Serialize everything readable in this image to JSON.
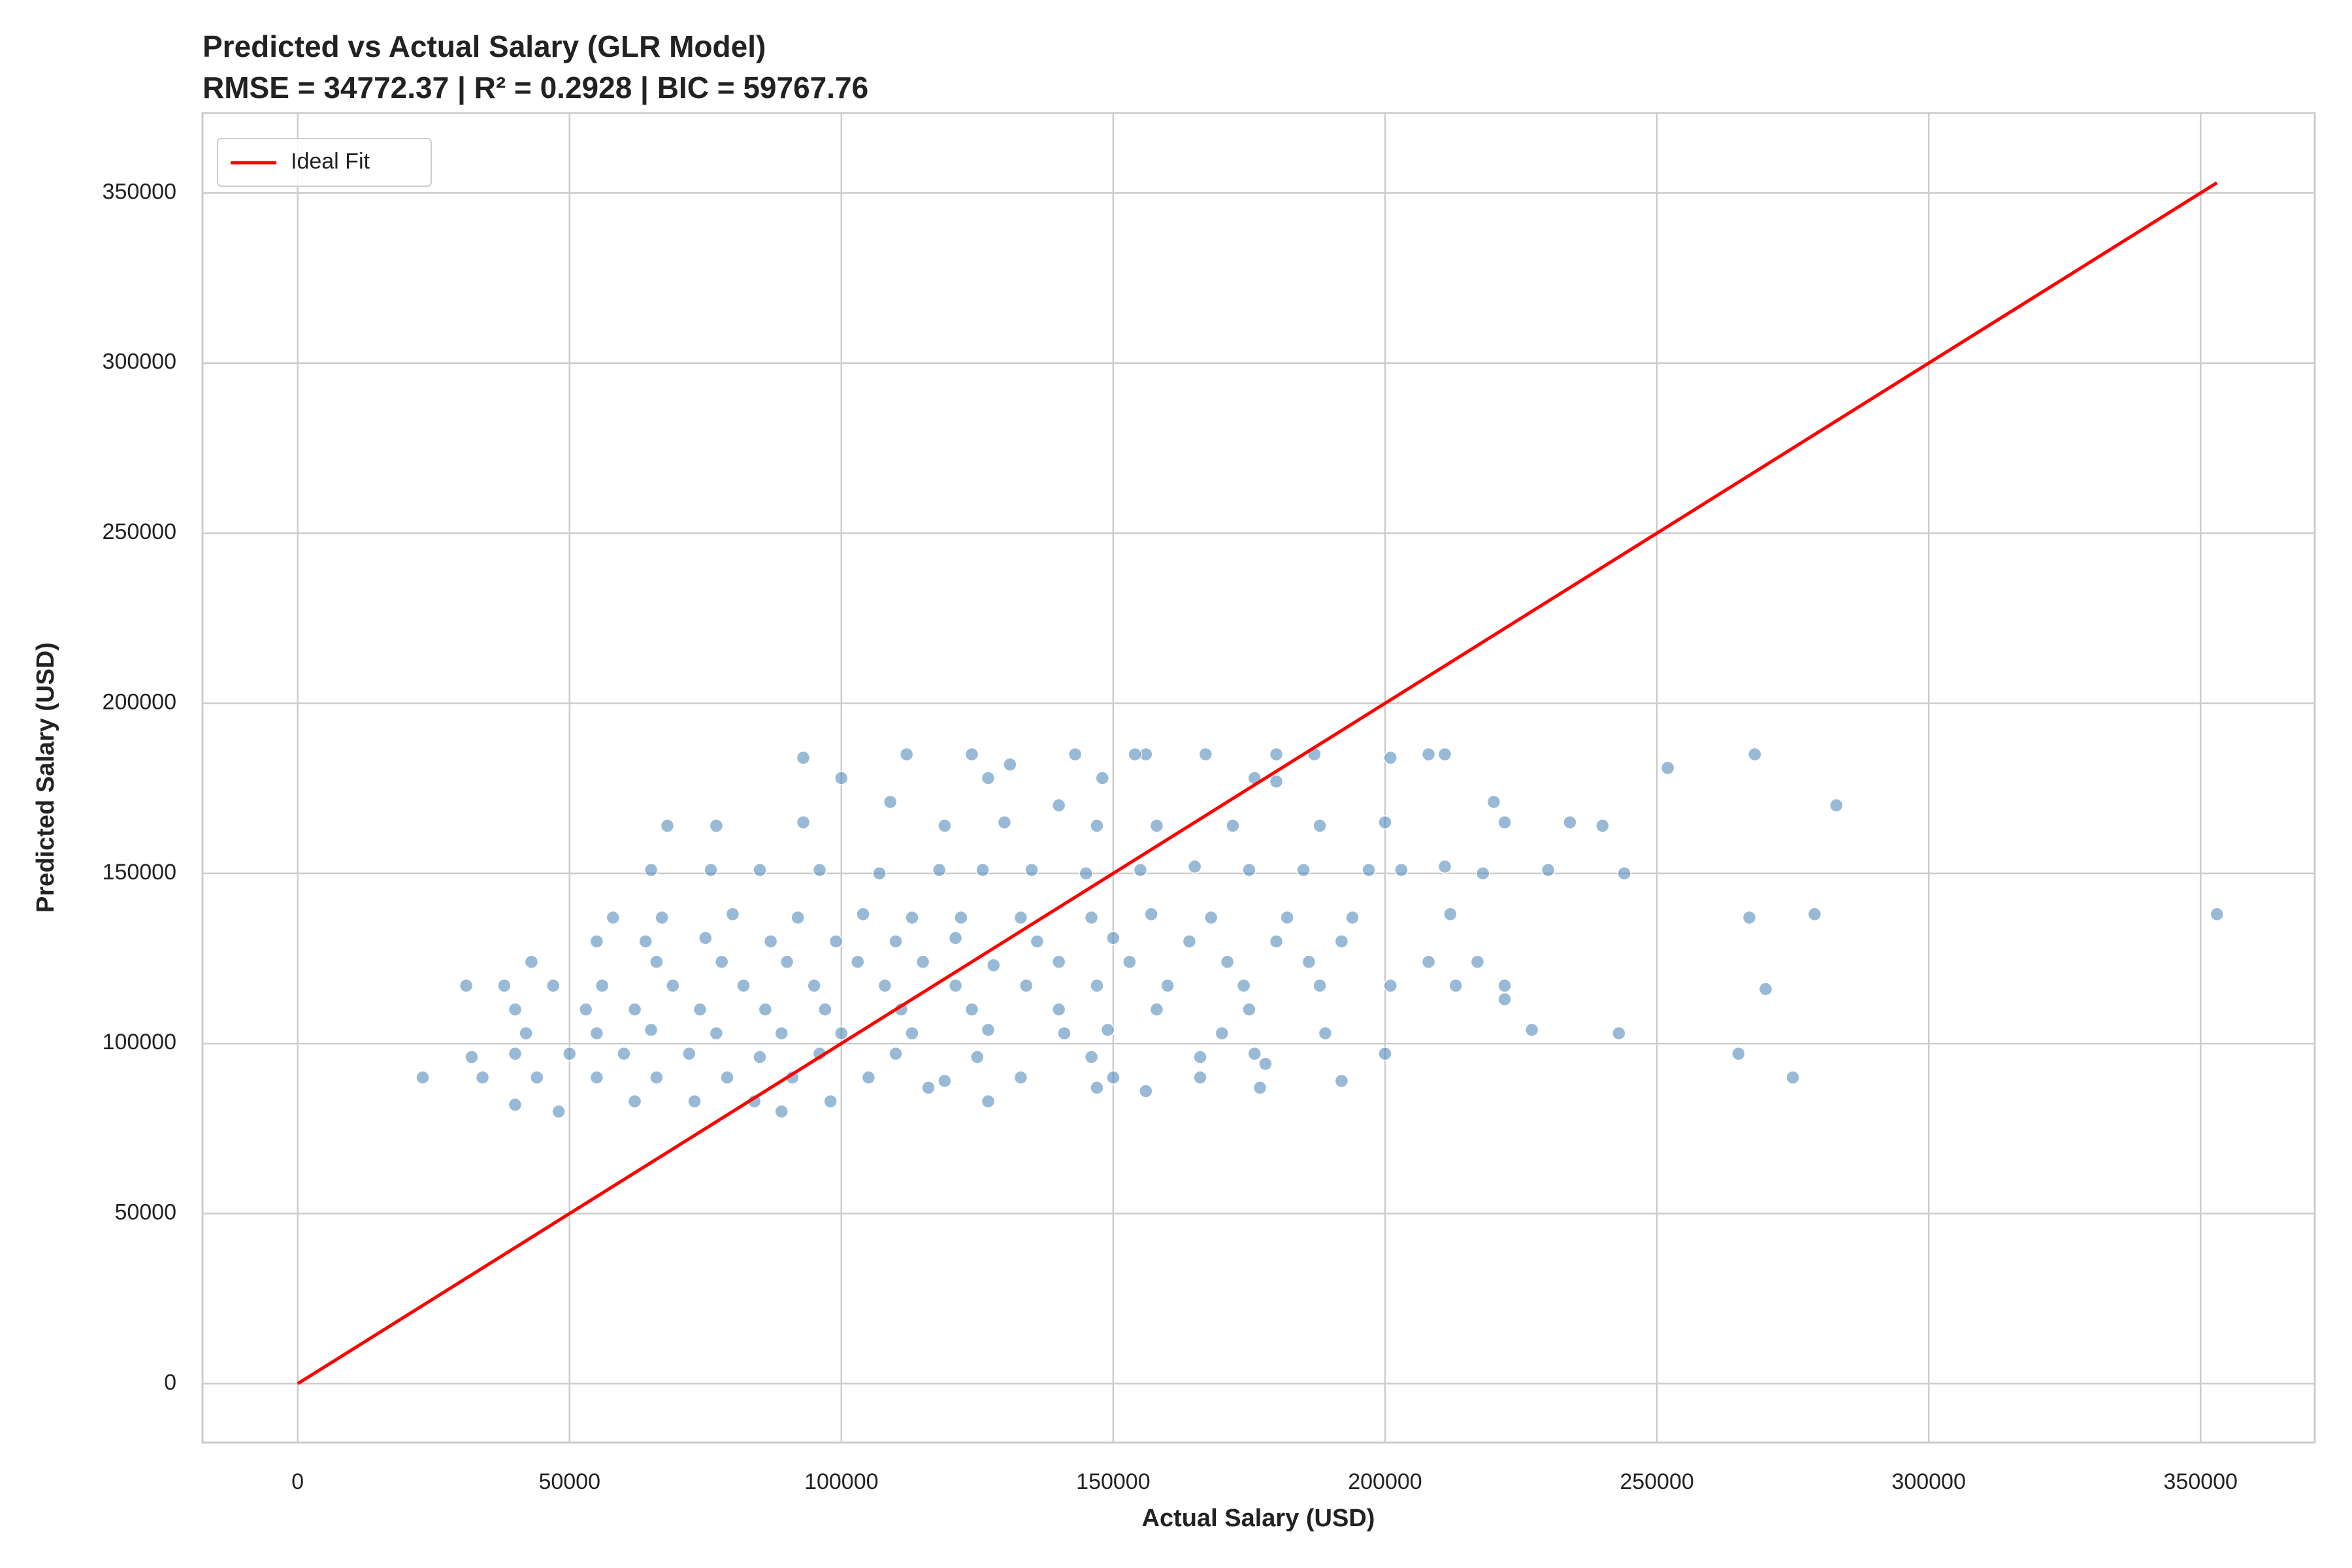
{
  "chart_data": {
    "type": "scatter",
    "title": "Predicted vs Actual Salary (GLR Model)",
    "subtitle": "RMSE = 34772.37 | R² = 0.2928 | BIC = 59767.76",
    "x_label": "Actual Salary (USD)",
    "y_label": "Predicted Salary (USD)",
    "xlim": [
      -17500,
      371000
    ],
    "ylim": [
      -17300,
      373500
    ],
    "xticks": [
      0,
      50000,
      100000,
      150000,
      200000,
      250000,
      300000,
      350000
    ],
    "yticks": [
      0,
      50000,
      100000,
      150000,
      200000,
      250000,
      300000,
      350000
    ],
    "grid": true,
    "legend": "upper left",
    "series": [
      {
        "type": "scatter",
        "color": "#4682b4",
        "x": [
          23000,
          353000,
          283000,
          268000,
          252000,
          279000,
          267000,
          270000,
          275000,
          265000,
          243000,
          244000,
          240000,
          234000,
          230000,
          227000,
          222000,
          222000,
          222000,
          220000,
          218000,
          211000,
          208000,
          211000,
          203000,
          201000,
          200000,
          200000,
          192000,
          189000,
          187000,
          180000,
          180000,
          178000,
          176000,
          167000,
          156000,
          154000,
          143000,
          124000,
          112000,
          93000,
          131000,
          100000,
          127000,
          148000,
          109000,
          140000,
          68000,
          77000,
          93000,
          119000,
          130000,
          147000,
          158000,
          172000,
          188000,
          65000,
          76000,
          85000,
          96000,
          107000,
          118000,
          126000,
          135000,
          145000,
          155000,
          165000,
          175000,
          185000,
          197000,
          58000,
          67000,
          80000,
          92000,
          104000,
          113000,
          122000,
          133000,
          146000,
          157000,
          168000,
          182000,
          194000,
          212000,
          55000,
          64000,
          75000,
          87000,
          99000,
          110000,
          121000,
          136000,
          150000,
          164000,
          180000,
          192000,
          43000,
          66000,
          78000,
          90000,
          103000,
          115000,
          128000,
          140000,
          153000,
          171000,
          186000,
          208000,
          217000,
          31000,
          38000,
          47000,
          56000,
          69000,
          82000,
          95000,
          108000,
          121000,
          134000,
          147000,
          160000,
          174000,
          188000,
          201000,
          213000,
          40000,
          53000,
          62000,
          74000,
          86000,
          97000,
          111000,
          124000,
          140000,
          158000,
          175000,
          42000,
          55000,
          65000,
          77000,
          89000,
          100000,
          113000,
          127000,
          141000,
          149000,
          170000,
          32000,
          40000,
          50000,
          60000,
          72000,
          85000,
          96000,
          110000,
          125000,
          146000,
          166000,
          176000,
          34000,
          44000,
          55000,
          66000,
          79000,
          91000,
          105000,
          119000,
          133000,
          150000,
          166000,
          40000,
          48000,
          62000,
          73000,
          84000,
          89000,
          98000,
          116000,
          127000,
          147000,
          156000,
          177000
        ],
        "values": [
          90000,
          138000,
          170000,
          185000,
          181000,
          138000,
          137000,
          116000,
          90000,
          97000,
          103000,
          150000,
          164000,
          165000,
          151000,
          104000,
          165000,
          117000,
          113000,
          171000,
          150000,
          185000,
          185000,
          152000,
          151000,
          184000,
          97000,
          165000,
          89000,
          103000,
          185000,
          185000,
          177000,
          94000,
          178000,
          185000,
          185000,
          185000,
          185000,
          185000,
          185000,
          184000,
          182000,
          178000,
          178000,
          178000,
          171000,
          170000,
          164000,
          164000,
          165000,
          164000,
          165000,
          164000,
          164000,
          164000,
          164000,
          151000,
          151000,
          151000,
          151000,
          150000,
          151000,
          151000,
          151000,
          150000,
          151000,
          152000,
          151000,
          151000,
          151000,
          137000,
          137000,
          138000,
          137000,
          138000,
          137000,
          137000,
          137000,
          137000,
          138000,
          137000,
          137000,
          137000,
          138000,
          130000,
          130000,
          131000,
          130000,
          130000,
          130000,
          131000,
          130000,
          131000,
          130000,
          130000,
          130000,
          124000,
          124000,
          124000,
          124000,
          124000,
          124000,
          123000,
          124000,
          124000,
          124000,
          124000,
          124000,
          124000,
          117000,
          117000,
          117000,
          117000,
          117000,
          117000,
          117000,
          117000,
          117000,
          117000,
          117000,
          117000,
          117000,
          117000,
          117000,
          117000,
          110000,
          110000,
          110000,
          110000,
          110000,
          110000,
          110000,
          110000,
          110000,
          110000,
          110000,
          103000,
          103000,
          104000,
          103000,
          103000,
          103000,
          103000,
          104000,
          103000,
          104000,
          103000,
          96000,
          97000,
          97000,
          97000,
          97000,
          96000,
          97000,
          97000,
          96000,
          96000,
          96000,
          97000,
          90000,
          90000,
          90000,
          90000,
          90000,
          90000,
          90000,
          89000,
          90000,
          90000,
          90000,
          82000,
          80000,
          83000,
          83000,
          83000,
          80000,
          83000,
          87000,
          83000,
          87000,
          86000,
          87000
        ]
      },
      {
        "type": "line",
        "name": "Ideal Fit",
        "color": "#ff0000",
        "x": [
          0,
          353000
        ],
        "values": [
          0,
          353000
        ]
      }
    ]
  }
}
